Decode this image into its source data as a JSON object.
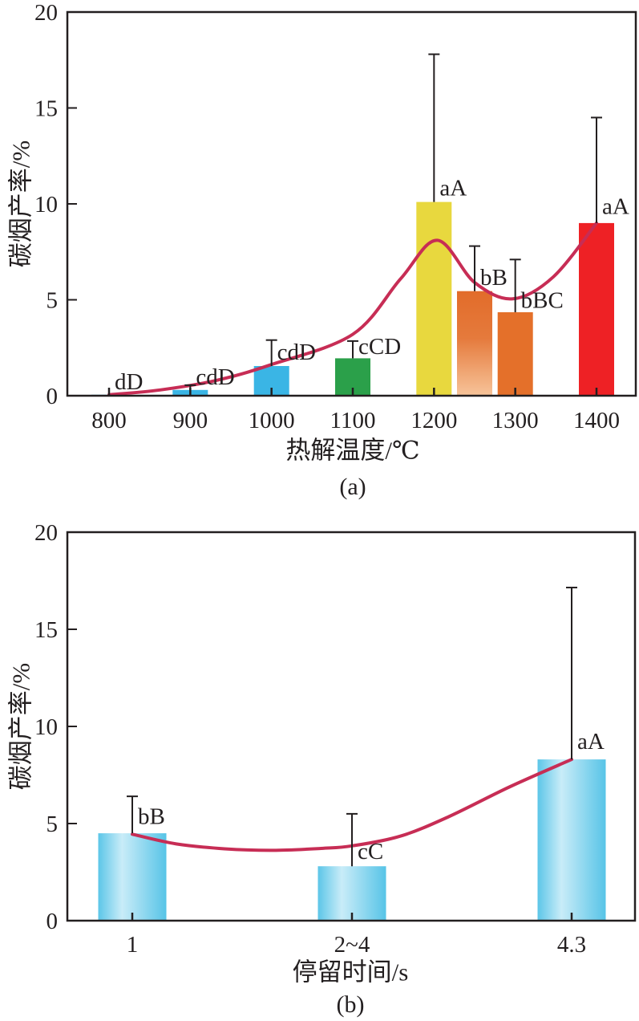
{
  "page": {
    "background": "#ffffff",
    "text_color": "#231f20"
  },
  "chart_data": [
    {
      "id": "a",
      "type": "bar",
      "caption": "(a)",
      "xlabel": "热解温度/℃",
      "ylabel": "碳烟产率/%",
      "ylim": [
        0,
        20
      ],
      "yticks": [
        0,
        5,
        10,
        15,
        20
      ],
      "x_axis_ticks": [
        800,
        900,
        1000,
        1100,
        1200,
        1300,
        1400
      ],
      "axis_color": "#231f20",
      "curve_color": "#c72d55",
      "grid": "off",
      "legend": "none",
      "bars": [
        {
          "x": 800,
          "value": 0.05,
          "err_top": null,
          "label": "dD",
          "color": "#3ab5e5",
          "label_at": 0.75
        },
        {
          "x": 900,
          "value": 0.3,
          "err_top": 0.55,
          "label": "cdD",
          "color": "#3ab5e5",
          "label_at": 1.0
        },
        {
          "x": 1000,
          "value": 1.55,
          "err_top": 2.9,
          "label": "cdD",
          "color": "#3ab5e5",
          "label_at": 2.3
        },
        {
          "x": 1100,
          "value": 1.95,
          "err_top": 2.85,
          "label": "cCD",
          "color": "#2ba04a",
          "label_at": 2.6
        },
        {
          "x": 1200,
          "value": 10.1,
          "err_top": 17.8,
          "label": "aA",
          "color": "#e8d83e",
          "label_at": 10.85
        },
        {
          "x": 1250,
          "value": 5.45,
          "err_top": 7.8,
          "label": "bB",
          "color": {
            "gradient": [
              "#e26c2a",
              "#e57a3c",
              "#f7c49a"
            ],
            "direction": "vertical"
          },
          "label_at": 6.2
        },
        {
          "x": 1300,
          "value": 4.35,
          "err_top": 7.1,
          "label": "bBC",
          "color": "#e4702a",
          "label_at": 5.0
        },
        {
          "x": 1400,
          "value": 9.0,
          "err_top": 14.5,
          "label": "aA",
          "color": "#ee2125",
          "label_at": 9.9
        }
      ],
      "trend_curve": [
        [
          800,
          0.05
        ],
        [
          863,
          0.3
        ],
        [
          932,
          0.8
        ],
        [
          998,
          1.6
        ],
        [
          1100,
          3.2
        ],
        [
          1159,
          6.1
        ],
        [
          1204,
          8.1
        ],
        [
          1250,
          5.9
        ],
        [
          1297,
          5.05
        ],
        [
          1347,
          6.2
        ],
        [
          1400,
          9.0
        ]
      ]
    },
    {
      "id": "b",
      "type": "bar",
      "caption": "(b)",
      "xlabel": "停留时间/s",
      "ylabel": "碳烟产率/%",
      "ylim": [
        0,
        20
      ],
      "yticks": [
        0,
        5,
        10,
        15,
        20
      ],
      "categories": [
        "1",
        "2~4",
        "4.3"
      ],
      "axis_color": "#231f20",
      "curve_color": "#c72d55",
      "grid": "off",
      "legend": "none",
      "bars": [
        {
          "x": 0,
          "value": 4.5,
          "err_top": 6.4,
          "label": "bB",
          "color": {
            "gradient": [
              "#5cc6e8",
              "#c9ecf8",
              "#57c4e7"
            ],
            "direction": "horizontal"
          },
          "label_at": 5.4
        },
        {
          "x": 1,
          "value": 2.8,
          "err_top": 5.5,
          "label": "cC",
          "color": {
            "gradient": [
              "#5cc6e8",
              "#c9ecf8",
              "#57c4e7"
            ],
            "direction": "horizontal"
          },
          "label_at": 3.6
        },
        {
          "x": 2,
          "value": 8.3,
          "err_top": 17.15,
          "label": "aA",
          "color": {
            "gradient": [
              "#5cc6e8",
              "#c9ecf8",
              "#57c4e7"
            ],
            "direction": "horizontal"
          },
          "label_at": 9.25
        }
      ],
      "trend_curve": [
        [
          0,
          4.45
        ],
        [
          0.2,
          3.95
        ],
        [
          0.42,
          3.7
        ],
        [
          0.64,
          3.62
        ],
        [
          0.86,
          3.72
        ],
        [
          1.0,
          3.85
        ],
        [
          1.22,
          4.35
        ],
        [
          1.44,
          5.35
        ],
        [
          1.72,
          6.9
        ],
        [
          2.0,
          8.3
        ]
      ]
    }
  ]
}
